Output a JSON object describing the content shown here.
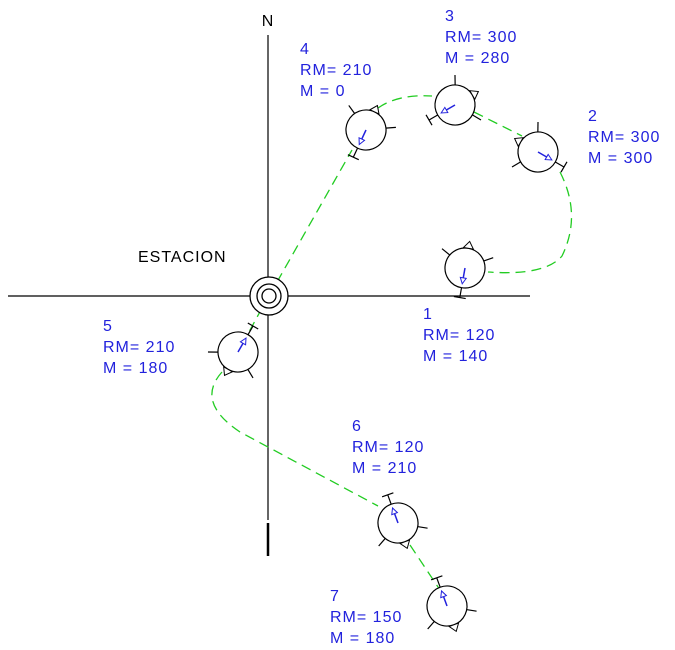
{
  "north": "N",
  "station": "ESTACION",
  "nodes": [
    {
      "id": "1",
      "rm": "RM= 120",
      "m": "M = 140"
    },
    {
      "id": "2",
      "rm": "RM= 300",
      "m": "M = 300"
    },
    {
      "id": "3",
      "rm": "RM= 300",
      "m": "M = 280"
    },
    {
      "id": "4",
      "rm": "RM= 210",
      "m": "M = 0"
    },
    {
      "id": "5",
      "rm": "RM= 210",
      "m": "M = 180"
    },
    {
      "id": "6",
      "rm": "RM= 120",
      "m": "M = 210"
    },
    {
      "id": "7",
      "rm": "RM= 150",
      "m": "M = 180"
    }
  ]
}
